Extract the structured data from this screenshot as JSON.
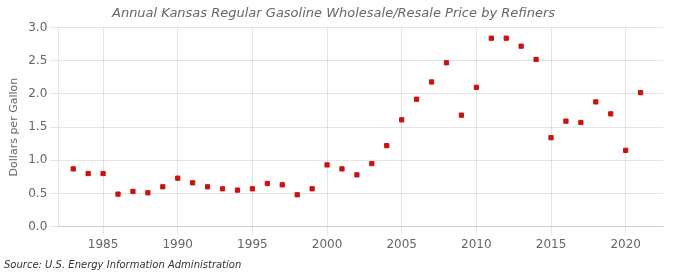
{
  "chart_data": {
    "type": "scatter",
    "title": "Annual Kansas Regular Gasoline Wholesale/Resale Price by Refiners",
    "ylabel": "Dollars per Gallon",
    "annotations": [
      "Source: U.S. Energy Information Administration"
    ],
    "x": [
      1983,
      1984,
      1985,
      1986,
      1987,
      1988,
      1989,
      1990,
      1991,
      1992,
      1993,
      1994,
      1995,
      1996,
      1997,
      1998,
      1999,
      2000,
      2001,
      2002,
      2003,
      2004,
      2005,
      2006,
      2007,
      2008,
      2009,
      2010,
      2011,
      2012,
      2013,
      2014,
      2015,
      2016,
      2017,
      2018,
      2019,
      2020,
      2021
    ],
    "values": [
      0.87,
      0.8,
      0.8,
      0.49,
      0.53,
      0.51,
      0.6,
      0.73,
      0.66,
      0.6,
      0.57,
      0.55,
      0.57,
      0.65,
      0.63,
      0.48,
      0.57,
      0.93,
      0.87,
      0.78,
      0.95,
      1.22,
      1.61,
      1.92,
      2.18,
      2.47,
      1.68,
      2.1,
      2.84,
      2.84,
      2.72,
      2.52,
      1.34,
      1.59,
      1.57,
      1.88,
      1.7,
      1.15,
      2.02
    ],
    "color": "#cc1111",
    "marker": "square",
    "xlim": [
      1982,
      2022.5
    ],
    "xticks": [
      1985,
      1990,
      1995,
      2000,
      2005,
      2010,
      2015,
      2020
    ],
    "ylim": [
      0.0,
      3.0
    ],
    "yticks": [
      {
        "value": 0,
        "label": "0.0"
      },
      0.5,
      {
        "value": 1,
        "label": "1.0"
      },
      1.5,
      {
        "value": 2,
        "label": "2.0"
      },
      2.5,
      {
        "value": 3,
        "label": "3.0"
      }
    ],
    "grid": true
  }
}
